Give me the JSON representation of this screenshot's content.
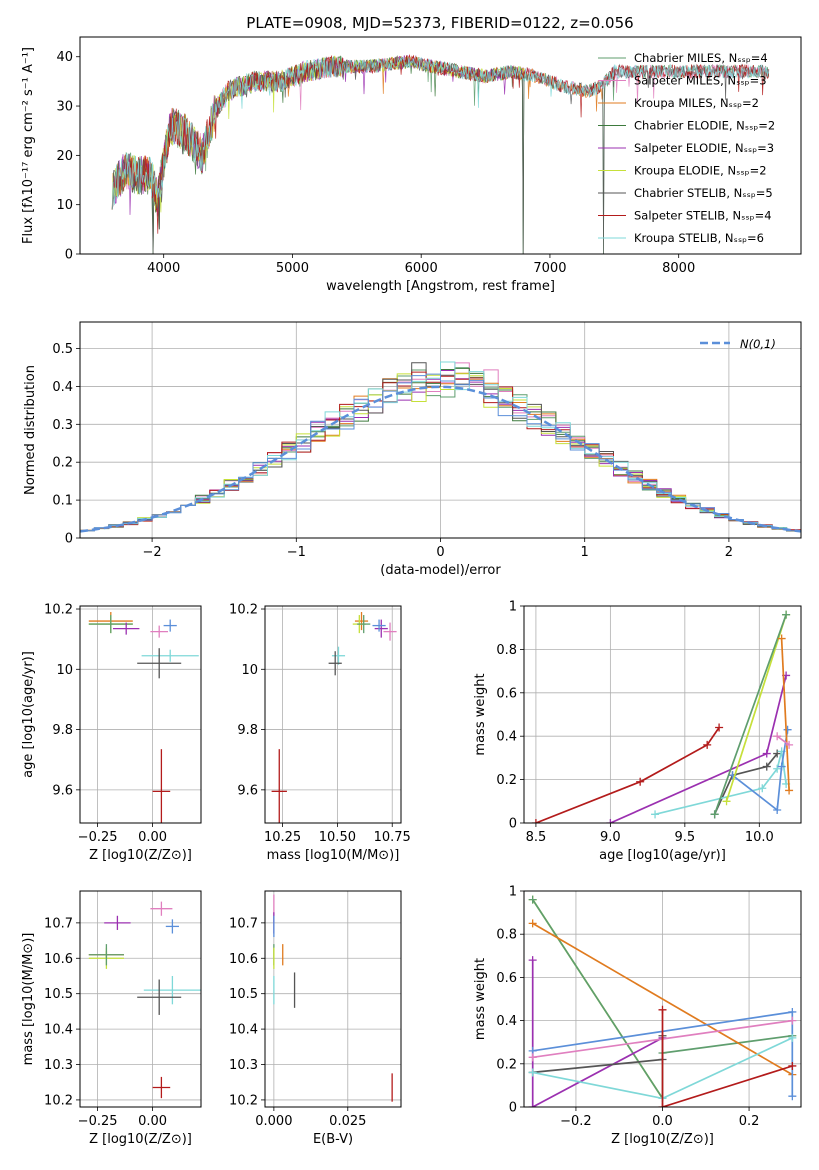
{
  "title": "PLATE=0908, MJD=52373, FIBERID=0122, z=0.056",
  "chart_data": [
    {
      "id": "spectrum",
      "type": "line",
      "xlabel": "wavelength [Angstrom, rest frame]",
      "ylabel": "Flux [fλ10⁻¹⁷ erg cm⁻² s⁻¹ A⁻¹]",
      "xlim": [
        3350,
        8950
      ],
      "ylim": [
        0,
        44
      ],
      "xticks": [
        4000,
        5000,
        6000,
        7000,
        8000
      ],
      "yticks": [
        0,
        10,
        20,
        30,
        40
      ],
      "grid": false,
      "legend_position": "right",
      "continuum": {
        "x": [
          3600,
          3700,
          3800,
          3900,
          3950,
          4050,
          4150,
          4300,
          4400,
          4500,
          4700,
          4900,
          5100,
          5300,
          5600,
          5900,
          6100,
          6300,
          6500,
          6700,
          6900,
          7100,
          7300,
          7400,
          7500,
          7800
        ],
        "y": [
          13,
          17,
          16,
          16,
          11,
          26,
          25,
          20,
          29,
          33,
          35,
          35,
          37,
          38,
          38,
          39,
          38,
          37,
          36,
          37,
          36,
          34,
          33,
          34,
          37,
          37
        ]
      },
      "spikes": [
        {
          "x": 3920,
          "y": 0
        },
        {
          "x": 3965,
          "y": 5
        },
        {
          "x": 6790,
          "y": 0
        },
        {
          "x": 7415,
          "y": 0
        }
      ],
      "series": [
        {
          "name": "Chabrier MILES, N_SSP=4",
          "color": "#5f9e6e",
          "end": 8700
        },
        {
          "name": "Salpeter MILES, N_SSP=3",
          "color": "#e07fbf",
          "end": 8700
        },
        {
          "name": "Kroupa MILES, N_SSP=2",
          "color": "#e07b1f",
          "end": 7420
        },
        {
          "name": "Chabrier ELODIE, N_SSP=2",
          "color": "#3d7a3d",
          "end": 6800
        },
        {
          "name": "Salpeter ELODIE, N_SSP=3",
          "color": "#9b30b0",
          "end": 6800
        },
        {
          "name": "Kroupa ELODIE, N_SSP=2",
          "color": "#c6e03a",
          "end": 6800
        },
        {
          "name": "Chabrier STELIB, N_SSP=5",
          "color": "#555555",
          "end": 8700
        },
        {
          "name": "Salpeter STELIB, N_SSP=4",
          "color": "#b31b1b",
          "end": 8700
        },
        {
          "name": "Kroupa STELIB, N_SSP=6",
          "color": "#7fd8d8",
          "end": 8700
        }
      ]
    },
    {
      "id": "residuals",
      "type": "line",
      "xlabel": "(data-model)/error",
      "ylabel": "Normed distribution",
      "xlim": [
        -2.5,
        2.5
      ],
      "ylim": [
        0,
        0.57
      ],
      "xticks": [
        -2,
        -1,
        0,
        1,
        2
      ],
      "yticks": [
        0.0,
        0.1,
        0.2,
        0.3,
        0.4,
        0.5
      ],
      "grid": true,
      "legend_position": "top-right",
      "legend": "N(0,1)",
      "gaussian_color": "#5b8fd9",
      "histogram_colors": [
        "#5f9e6e",
        "#e07fbf",
        "#e07b1f",
        "#3d7a3d",
        "#9b30b0",
        "#c6e03a",
        "#555555",
        "#b31b1b",
        "#7fd8d8",
        "#5b8fd9"
      ]
    },
    {
      "id": "age_vs_Z",
      "type": "scatter",
      "xlabel": "Z [log10(Z/Z⊙)]",
      "ylabel": "age  [log10(age/yr)]",
      "xlim": [
        -0.33,
        0.22
      ],
      "ylim": [
        9.49,
        10.21
      ],
      "xticks": [
        -0.25,
        0.0
      ],
      "xticklabels": [
        "−0.25",
        "0.00"
      ],
      "yticks": [
        9.6,
        9.8,
        10.0,
        10.2
      ],
      "grid": true,
      "points": [
        {
          "x": -0.19,
          "xerr": 0.1,
          "y": 10.16,
          "yerr": 0.03,
          "color": "#e07b1f"
        },
        {
          "x": -0.19,
          "xerr": 0.1,
          "y": 10.15,
          "yerr": 0.03,
          "color": "#c6e03a"
        },
        {
          "x": -0.19,
          "xerr": 0.1,
          "y": 10.15,
          "yerr": 0.03,
          "color": "#5f9e6e"
        },
        {
          "x": -0.12,
          "xerr": 0.06,
          "y": 10.135,
          "yerr": 0.02,
          "color": "#9b30b0"
        },
        {
          "x": 0.03,
          "xerr": 0.04,
          "y": 10.125,
          "yerr": 0.02,
          "color": "#e07fbf"
        },
        {
          "x": 0.08,
          "xerr": 0.03,
          "y": 10.145,
          "yerr": 0.02,
          "color": "#5b8fd9"
        },
        {
          "x": 0.08,
          "xerr": 0.13,
          "y": 10.045,
          "yerr": 0.02,
          "color": "#7fd8d8"
        },
        {
          "x": 0.03,
          "xerr": 0.1,
          "y": 10.02,
          "yerr": 0.05,
          "color": "#555555"
        },
        {
          "x": 0.04,
          "xerr": 0.04,
          "y": 9.595,
          "yerr": 0.14,
          "color": "#b31b1b"
        }
      ]
    },
    {
      "id": "age_vs_mass",
      "type": "scatter",
      "xlabel": "mass [log10(M/M⊙)]",
      "ylabel": "",
      "xlim": [
        10.17,
        10.79
      ],
      "ylim": [
        9.49,
        10.21
      ],
      "xticks": [
        10.25,
        10.5,
        10.75
      ],
      "xticklabels": [
        "10.25",
        "10.50",
        "10.75"
      ],
      "yticks": [
        9.6,
        9.8,
        10.0,
        10.2
      ],
      "grid": true,
      "points": [
        {
          "x": 10.61,
          "xerr": 0.03,
          "y": 10.16,
          "yerr": 0.03,
          "color": "#e07b1f"
        },
        {
          "x": 10.6,
          "xerr": 0.03,
          "y": 10.15,
          "yerr": 0.03,
          "color": "#c6e03a"
        },
        {
          "x": 10.62,
          "xerr": 0.03,
          "y": 10.15,
          "yerr": 0.03,
          "color": "#5f9e6e"
        },
        {
          "x": 10.7,
          "xerr": 0.03,
          "y": 10.135,
          "yerr": 0.03,
          "color": "#9b30b0"
        },
        {
          "x": 10.74,
          "xerr": 0.03,
          "y": 10.125,
          "yerr": 0.03,
          "color": "#e07fbf"
        },
        {
          "x": 10.69,
          "xerr": 0.03,
          "y": 10.145,
          "yerr": 0.02,
          "color": "#5b8fd9"
        },
        {
          "x": 10.505,
          "xerr": 0.03,
          "y": 10.045,
          "yerr": 0.03,
          "color": "#7fd8d8"
        },
        {
          "x": 10.49,
          "xerr": 0.03,
          "y": 10.02,
          "yerr": 0.04,
          "color": "#555555"
        },
        {
          "x": 10.235,
          "xerr": 0.035,
          "y": 9.595,
          "yerr": 0.14,
          "color": "#b31b1b"
        }
      ]
    },
    {
      "id": "weight_vs_age",
      "type": "line",
      "xlabel": "age  [log10(age/yr)]",
      "ylabel": "mass weight",
      "xlim": [
        8.42,
        10.28
      ],
      "ylim": [
        0,
        1.0
      ],
      "xticks": [
        8.5,
        9.0,
        9.5,
        10.0
      ],
      "xticklabels": [
        "8.5",
        "9.0",
        "9.5",
        "10.0"
      ],
      "yticks": [
        0.0,
        0.2,
        0.4,
        0.6,
        0.8,
        1.0
      ],
      "grid": true,
      "series": [
        {
          "color": "#b31b1b",
          "points": [
            [
              8.5,
              0.0
            ],
            [
              9.2,
              0.19
            ],
            [
              9.65,
              0.36
            ],
            [
              9.73,
              0.44
            ]
          ]
        },
        {
          "color": "#9b30b0",
          "points": [
            [
              9.0,
              0.0
            ],
            [
              10.05,
              0.32
            ],
            [
              10.18,
              0.68
            ]
          ]
        },
        {
          "color": "#555555",
          "points": [
            [
              9.7,
              0.04
            ],
            [
              9.82,
              0.22
            ],
            [
              10.05,
              0.26
            ],
            [
              10.12,
              0.32
            ]
          ]
        },
        {
          "color": "#7fd8d8",
          "points": [
            [
              9.3,
              0.04
            ],
            [
              10.02,
              0.16
            ],
            [
              10.12,
              0.25
            ],
            [
              10.15,
              0.33
            ],
            [
              10.18,
              0.18
            ]
          ]
        },
        {
          "color": "#5b8fd9",
          "points": [
            [
              9.82,
              0.22
            ],
            [
              10.12,
              0.06
            ],
            [
              10.15,
              0.26
            ],
            [
              10.19,
              0.43
            ]
          ]
        },
        {
          "color": "#c6e03a",
          "points": [
            [
              9.78,
              0.1
            ],
            [
              10.18,
              0.96
            ]
          ]
        },
        {
          "color": "#5f9e6e",
          "points": [
            [
              9.7,
              0.04
            ],
            [
              10.18,
              0.96
            ]
          ]
        },
        {
          "color": "#e07b1f",
          "points": [
            [
              10.15,
              0.85
            ],
            [
              10.2,
              0.15
            ]
          ]
        },
        {
          "color": "#e07fbf",
          "points": [
            [
              10.12,
              0.4
            ],
            [
              10.2,
              0.36
            ]
          ]
        }
      ]
    },
    {
      "id": "mass_vs_Z",
      "type": "scatter",
      "xlabel": "Z [log10(Z/Z⊙)]",
      "ylabel": "mass [log10(M/M⊙)]",
      "xlim": [
        -0.33,
        0.22
      ],
      "ylim": [
        10.18,
        10.79
      ],
      "xticks": [
        -0.25,
        0.0
      ],
      "xticklabels": [
        "−0.25",
        "0.00"
      ],
      "yticks": [
        10.2,
        10.3,
        10.4,
        10.5,
        10.6,
        10.7
      ],
      "grid": true,
      "points": [
        {
          "x": -0.21,
          "xerr": 0.08,
          "y": 10.61,
          "yerr": 0.01,
          "color": "#e07b1f"
        },
        {
          "x": -0.21,
          "xerr": 0.08,
          "y": 10.6,
          "yerr": 0.03,
          "color": "#c6e03a"
        },
        {
          "x": -0.21,
          "xerr": 0.08,
          "y": 10.61,
          "yerr": 0.03,
          "color": "#5f9e6e"
        },
        {
          "x": -0.16,
          "xerr": 0.06,
          "y": 10.7,
          "yerr": 0.02,
          "color": "#9b30b0"
        },
        {
          "x": 0.04,
          "xerr": 0.05,
          "y": 10.74,
          "yerr": 0.02,
          "color": "#e07fbf"
        },
        {
          "x": 0.09,
          "xerr": 0.03,
          "y": 10.69,
          "yerr": 0.02,
          "color": "#5b8fd9"
        },
        {
          "x": 0.09,
          "xerr": 0.13,
          "y": 10.51,
          "yerr": 0.04,
          "color": "#7fd8d8"
        },
        {
          "x": 0.03,
          "xerr": 0.1,
          "y": 10.49,
          "yerr": 0.05,
          "color": "#555555"
        },
        {
          "x": 0.04,
          "xerr": 0.04,
          "y": 10.235,
          "yerr": 0.03,
          "color": "#b31b1b"
        }
      ]
    },
    {
      "id": "mass_vs_ebv",
      "type": "scatter",
      "xlabel": "E(B-V)",
      "ylabel": "",
      "xlim": [
        -0.003,
        0.043
      ],
      "ylim": [
        10.18,
        10.79
      ],
      "xticks": [
        0.0,
        0.025
      ],
      "xticklabels": [
        "0.000",
        "0.025"
      ],
      "yticks": [
        10.2,
        10.3,
        10.4,
        10.5,
        10.6,
        10.7
      ],
      "grid": true,
      "points": [
        {
          "x": 0.0,
          "xerr": 0.0,
          "y": 10.74,
          "yerr": 0.04,
          "color": "#e07fbf"
        },
        {
          "x": 0.0,
          "xerr": 0.0,
          "y": 10.7,
          "yerr": 0.03,
          "color": "#9b30b0"
        },
        {
          "x": 0.0,
          "xerr": 0.0,
          "y": 10.69,
          "yerr": 0.03,
          "color": "#5b8fd9"
        },
        {
          "x": 0.0,
          "xerr": 0.0,
          "y": 10.61,
          "yerr": 0.03,
          "color": "#5f9e6e"
        },
        {
          "x": 0.0,
          "xerr": 0.0,
          "y": 10.6,
          "yerr": 0.03,
          "color": "#c6e03a"
        },
        {
          "x": 0.0,
          "xerr": 0.0,
          "y": 10.51,
          "yerr": 0.04,
          "color": "#7fd8d8"
        },
        {
          "x": 0.003,
          "xerr": 0.0,
          "y": 10.61,
          "yerr": 0.03,
          "color": "#e07b1f"
        },
        {
          "x": 0.007,
          "xerr": 0.0,
          "y": 10.51,
          "yerr": 0.05,
          "color": "#555555"
        },
        {
          "x": 0.04,
          "xerr": 0.0,
          "y": 10.235,
          "yerr": 0.04,
          "color": "#b31b1b"
        }
      ]
    },
    {
      "id": "weight_vs_Z",
      "type": "line",
      "xlabel": "Z [log10(Z/Z⊙)]",
      "ylabel": "mass weight",
      "xlim": [
        -0.32,
        0.32
      ],
      "ylim": [
        0,
        1.0
      ],
      "xticks": [
        -0.2,
        0.0,
        0.2
      ],
      "xticklabels": [
        "−0.2",
        "0.0",
        "0.2"
      ],
      "yticks": [
        0.0,
        0.2,
        0.4,
        0.6,
        0.8,
        1.0
      ],
      "grid": true,
      "series": [
        {
          "color": "#c6e03a",
          "points": [
            [
              -0.3,
              0.96
            ],
            [
              0.0,
              0.04
            ]
          ]
        },
        {
          "color": "#5f9e6e",
          "points": [
            [
              -0.3,
              0.96
            ],
            [
              0.0,
              0.04
            ],
            [
              0.0,
              0.25
            ],
            [
              0.3,
              0.33
            ]
          ]
        },
        {
          "color": "#e07b1f",
          "points": [
            [
              -0.3,
              0.85
            ],
            [
              0.3,
              0.15
            ]
          ]
        },
        {
          "color": "#9b30b0",
          "points": [
            [
              -0.3,
              0.68
            ],
            [
              -0.3,
              0.0
            ],
            [
              0.0,
              0.32
            ]
          ]
        },
        {
          "color": "#5b8fd9",
          "points": [
            [
              -0.3,
              0.26
            ],
            [
              0.3,
              0.44
            ],
            [
              0.3,
              0.05
            ]
          ]
        },
        {
          "color": "#e07fbf",
          "points": [
            [
              -0.3,
              0.23
            ],
            [
              0.3,
              0.4
            ]
          ]
        },
        {
          "color": "#555555",
          "points": [
            [
              -0.3,
              0.16
            ],
            [
              0.0,
              0.22
            ],
            [
              0.0,
              0.33
            ]
          ]
        },
        {
          "color": "#7fd8d8",
          "points": [
            [
              -0.3,
              0.16
            ],
            [
              0.0,
              0.04
            ],
            [
              0.3,
              0.32
            ]
          ]
        },
        {
          "color": "#b31b1b",
          "points": [
            [
              0.0,
              0.45
            ],
            [
              0.0,
              0.0
            ],
            [
              0.3,
              0.19
            ]
          ]
        }
      ]
    }
  ]
}
